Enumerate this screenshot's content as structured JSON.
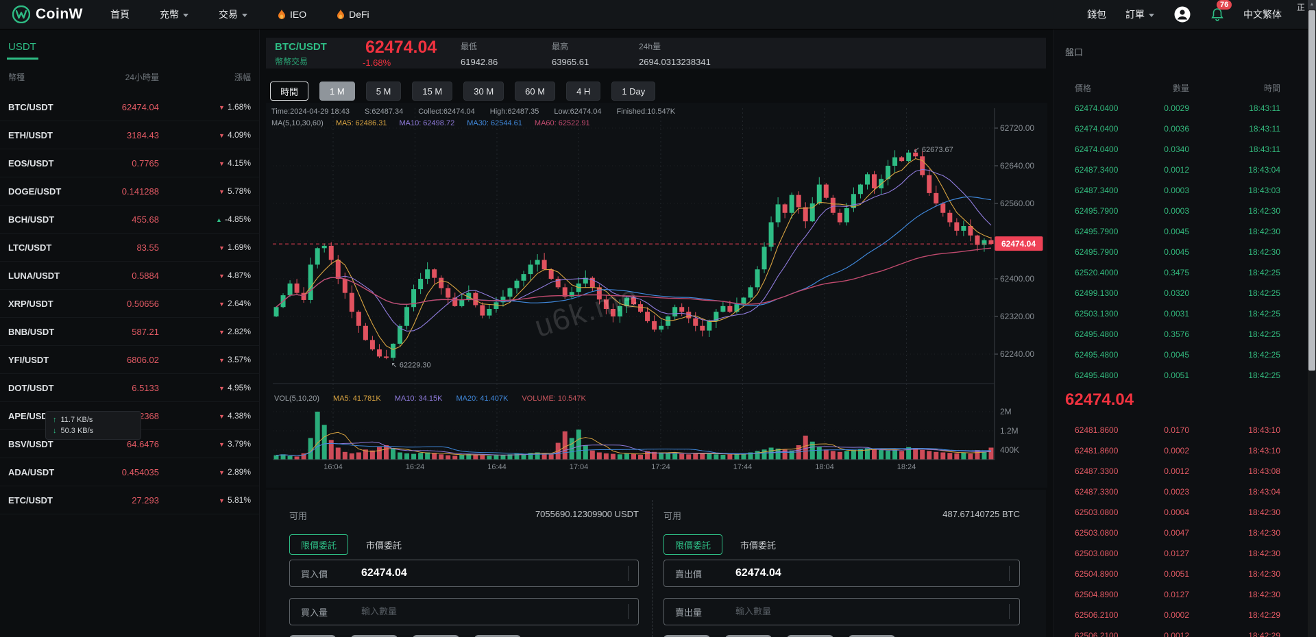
{
  "nav": {
    "brand": "CoinW",
    "items": [
      {
        "label": "首頁"
      },
      {
        "label": "充幣",
        "caret": true
      },
      {
        "label": "交易",
        "caret": true
      },
      {
        "label": "IEO",
        "fire": true
      },
      {
        "label": "DeFi",
        "fire": true
      }
    ],
    "wallet": "錢包",
    "orders": "訂單",
    "notif_count": "76",
    "lang": "中文繁体",
    "corner_text": "正"
  },
  "sidebar": {
    "tab": "USDT",
    "headers": {
      "coin": "幣種",
      "volume": "24小時量",
      "change": "漲幅"
    },
    "pairs": [
      {
        "symbol": "BTC/USDT",
        "price": "62474.04",
        "change": "1.68%",
        "dir": "down"
      },
      {
        "symbol": "ETH/USDT",
        "price": "3184.43",
        "change": "4.09%",
        "dir": "down"
      },
      {
        "symbol": "EOS/USDT",
        "price": "0.7765",
        "change": "4.15%",
        "dir": "down"
      },
      {
        "symbol": "DOGE/USDT",
        "price": "0.141288",
        "change": "5.78%",
        "dir": "down"
      },
      {
        "symbol": "BCH/USDT",
        "price": "455.68",
        "change": "-4.85%",
        "dir": "up"
      },
      {
        "symbol": "LTC/USDT",
        "price": "83.55",
        "change": "1.69%",
        "dir": "down"
      },
      {
        "symbol": "LUNA/USDT",
        "price": "0.5884",
        "change": "4.87%",
        "dir": "down"
      },
      {
        "symbol": "XRP/USDT",
        "price": "0.50656",
        "change": "2.64%",
        "dir": "down"
      },
      {
        "symbol": "BNB/USDT",
        "price": "587.21",
        "change": "2.82%",
        "dir": "down"
      },
      {
        "symbol": "YFI/USDT",
        "price": "6806.02",
        "change": "3.57%",
        "dir": "down"
      },
      {
        "symbol": "DOT/USDT",
        "price": "6.5133",
        "change": "4.95%",
        "dir": "down"
      },
      {
        "symbol": "APE/USDT",
        "price": "1.2368",
        "change": "4.38%",
        "dir": "down"
      },
      {
        "symbol": "BSV/USDT",
        "price": "64.6476",
        "change": "3.79%",
        "dir": "down"
      },
      {
        "symbol": "ADA/USDT",
        "price": "0.454035",
        "change": "2.89%",
        "dir": "down"
      },
      {
        "symbol": "ETC/USDT",
        "price": "27.293",
        "change": "5.81%",
        "dir": "down"
      }
    ]
  },
  "market": {
    "pair": "BTC/USDT",
    "trade_type": "幣幣交易",
    "price": "62474.04",
    "change": "-1.68%",
    "stats": [
      {
        "label": "最低",
        "value": "61942.86"
      },
      {
        "label": "最高",
        "value": "63965.61"
      },
      {
        "label": "24h量",
        "value": "2694.0313238341"
      }
    ]
  },
  "timeframes": {
    "label": "時間",
    "buttons": [
      {
        "label": "1 M",
        "active": true
      },
      {
        "label": "5 M"
      },
      {
        "label": "15 M"
      },
      {
        "label": "30 M"
      },
      {
        "label": "60 M"
      },
      {
        "label": "4 H"
      },
      {
        "label": "1 Day"
      }
    ]
  },
  "chart_info": {
    "line1": [
      {
        "key": "plain",
        "label": "Time:2024-04-29 18:43"
      },
      {
        "key": "plain",
        "label": "S:62487.34"
      },
      {
        "key": "plain",
        "label": "Collect:62474.04"
      },
      {
        "key": "plain",
        "label": "High:62487.35"
      },
      {
        "key": "plain",
        "label": "Low:62474.04"
      },
      {
        "key": "plain",
        "label": "Finished:10.547K"
      }
    ],
    "line2": [
      {
        "key": "plain",
        "label": "MA(5,10,30,60)"
      },
      {
        "key": "ma5",
        "label": "MA5: 62486.31"
      },
      {
        "key": "ma10",
        "label": "MA10: 62498.72"
      },
      {
        "key": "ma30",
        "label": "MA30: 62544.61"
      },
      {
        "key": "ma60",
        "label": "MA60: 62522.91"
      }
    ],
    "vol_line": [
      {
        "key": "plain",
        "label": "VOL(5,10,20)"
      },
      {
        "key": "ma5",
        "label": "MA5: 41.781K"
      },
      {
        "key": "ma10",
        "label": "MA10: 34.15K"
      },
      {
        "key": "ma30",
        "label": "MA20: 41.407K"
      },
      {
        "key": "vol",
        "label": "VOLUME: 10.547K"
      }
    ]
  },
  "chart_data": {
    "type": "candlestick",
    "watermark": "u6k.me",
    "yticks": [
      "62720.00",
      "62640.00",
      "62560.00",
      "62480.00",
      "62400.00",
      "62320.00",
      "62240.00"
    ],
    "ytick_values": [
      62720,
      62640,
      62560,
      62480,
      62400,
      62320,
      62240
    ],
    "xticks": [
      "16:04",
      "16:24",
      "16:44",
      "17:04",
      "17:24",
      "17:44",
      "18:04",
      "18:24"
    ],
    "vol_ticks": [
      "2M",
      "1.2M",
      "400K"
    ],
    "vol_tick_values": [
      2000,
      1200,
      400
    ],
    "last_price": "62474.04",
    "last_price_value": 62474.04,
    "annotations": [
      {
        "arrow": "↙",
        "label": "62673.67",
        "index": 92,
        "at": "high"
      },
      {
        "arrow": "↖",
        "label": "62229.30",
        "index": 16,
        "at": "low"
      }
    ],
    "wick_overrides": {
      "16": {
        "low": 62229.3
      },
      "92": {
        "high": 62673.67
      }
    },
    "closes": [
      62340,
      62365,
      62390,
      62370,
      62355,
      62430,
      62465,
      62470,
      62440,
      62400,
      62370,
      62330,
      62300,
      62270,
      62250,
      62235,
      62232,
      62262,
      62300,
      62340,
      62378,
      62400,
      62420,
      62402,
      62380,
      62360,
      62342,
      62355,
      62370,
      62344,
      62322,
      62336,
      62350,
      62362,
      62380,
      62396,
      62410,
      62430,
      62440,
      62420,
      62400,
      62382,
      62362,
      62372,
      62390,
      62402,
      62382,
      62356,
      62336,
      62320,
      62342,
      62360,
      62346,
      62330,
      62310,
      62292,
      62300,
      62320,
      62340,
      62330,
      62316,
      62300,
      62290,
      62310,
      62330,
      62342,
      62330,
      62346,
      62360,
      62382,
      62420,
      62468,
      62520,
      62558,
      62540,
      62578,
      62552,
      62522,
      62560,
      62600,
      62572,
      62540,
      62520,
      62550,
      62580,
      62600,
      62622,
      62592,
      62612,
      62640,
      62658,
      62650,
      62668,
      62660,
      62620,
      62582,
      62560,
      62540,
      62520,
      62502,
      62512,
      62492,
      62472,
      62482,
      62474
    ],
    "volumes_k": [
      180,
      220,
      150,
      130,
      260,
      900,
      2000,
      1450,
      820,
      500,
      320,
      260,
      300,
      420,
      380,
      520,
      600,
      450,
      300,
      260,
      240,
      280,
      300,
      260,
      220,
      180,
      160,
      200,
      240,
      200,
      180,
      160,
      180,
      200,
      220,
      260,
      240,
      280,
      300,
      260,
      240,
      700,
      1180,
      900,
      1250,
      600,
      380,
      300,
      260,
      240,
      220,
      260,
      240,
      200,
      350,
      320,
      300,
      280,
      260,
      240,
      220,
      260,
      280,
      240,
      220,
      200,
      220,
      240,
      260,
      300,
      360,
      420,
      500,
      460,
      420,
      380,
      600,
      1000,
      750,
      520,
      420,
      360,
      320,
      360,
      400,
      440,
      480,
      420,
      400,
      380,
      420,
      360,
      520,
      480,
      400,
      360,
      320,
      300,
      280,
      260,
      300,
      250,
      400,
      350,
      500
    ]
  },
  "orderbook": {
    "title": "盤口",
    "headers": {
      "price": "價格",
      "amount": "數量",
      "time": "時間"
    },
    "green_rows": [
      {
        "price": "62474.0400",
        "amount": "0.0029",
        "time": "18:43:11"
      },
      {
        "price": "62474.0400",
        "amount": "0.0036",
        "time": "18:43:11"
      },
      {
        "price": "62474.0400",
        "amount": "0.0340",
        "time": "18:43:11"
      },
      {
        "price": "62487.3400",
        "amount": "0.0012",
        "time": "18:43:04"
      },
      {
        "price": "62487.3400",
        "amount": "0.0003",
        "time": "18:43:03"
      },
      {
        "price": "62495.7900",
        "amount": "0.0003",
        "time": "18:42:30"
      },
      {
        "price": "62495.7900",
        "amount": "0.0045",
        "time": "18:42:30"
      },
      {
        "price": "62495.7900",
        "amount": "0.0045",
        "time": "18:42:30"
      },
      {
        "price": "62520.4000",
        "amount": "0.3475",
        "time": "18:42:25"
      },
      {
        "price": "62499.1300",
        "amount": "0.0320",
        "time": "18:42:25"
      },
      {
        "price": "62503.1300",
        "amount": "0.0031",
        "time": "18:42:25"
      },
      {
        "price": "62495.4800",
        "amount": "0.3576",
        "time": "18:42:25"
      },
      {
        "price": "62495.4800",
        "amount": "0.0045",
        "time": "18:42:25"
      },
      {
        "price": "62495.4800",
        "amount": "0.0051",
        "time": "18:42:25"
      }
    ],
    "last_price": "62474.04",
    "red_rows": [
      {
        "price": "62481.8600",
        "amount": "0.0170",
        "time": "18:43:10"
      },
      {
        "price": "62481.8600",
        "amount": "0.0002",
        "time": "18:43:10"
      },
      {
        "price": "62487.3300",
        "amount": "0.0012",
        "time": "18:43:08"
      },
      {
        "price": "62487.3300",
        "amount": "0.0023",
        "time": "18:43:04"
      },
      {
        "price": "62503.0800",
        "amount": "0.0004",
        "time": "18:42:30"
      },
      {
        "price": "62503.0800",
        "amount": "0.0047",
        "time": "18:42:30"
      },
      {
        "price": "62503.0800",
        "amount": "0.0127",
        "time": "18:42:30"
      },
      {
        "price": "62504.8900",
        "amount": "0.0051",
        "time": "18:42:30"
      },
      {
        "price": "62504.8900",
        "amount": "0.0127",
        "time": "18:42:30"
      },
      {
        "price": "62506.2100",
        "amount": "0.0002",
        "time": "18:42:29"
      },
      {
        "price": "62506.2100",
        "amount": "0.0012",
        "time": "18:42:29"
      }
    ]
  },
  "trade": {
    "percent_button_count": 4,
    "buy": {
      "available_label": "可用",
      "available": "7055690.12309900 USDT",
      "limit_tab": "限價委託",
      "market_tab": "市價委託",
      "price_label": "買入價",
      "price_value": "62474.04",
      "amount_label": "買入量",
      "amount_placeholder": "輸入數量"
    },
    "sell": {
      "available_label": "可用",
      "available": "487.67140725 BTC",
      "limit_tab": "限價委託",
      "market_tab": "市價委託",
      "price_label": "賣出價",
      "price_value": "62474.04",
      "amount_label": "賣出量",
      "amount_placeholder": "輸入數量"
    }
  },
  "speed": {
    "up": "11.7 KB/s",
    "down": "50.3 KB/s"
  }
}
